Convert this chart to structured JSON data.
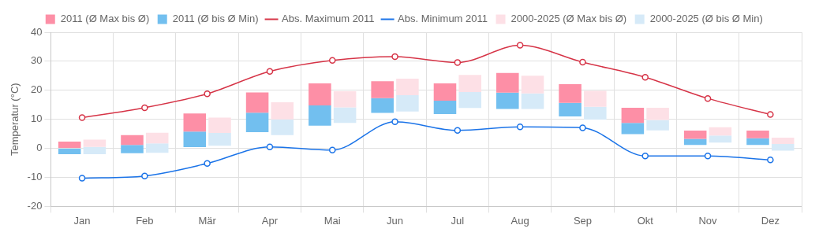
{
  "chart_data": {
    "type": "bar",
    "ylabel": "Temperatur (°C)",
    "categories": [
      "Jan",
      "Feb",
      "Mär",
      "Apr",
      "Mai",
      "Jun",
      "Jul",
      "Aug",
      "Sep",
      "Okt",
      "Nov",
      "Dez"
    ],
    "series": [
      {
        "name": "2011 (Ø Max bis Ø)",
        "color": "#fd8fa6",
        "base": [
          0,
          1.2,
          5.8,
          12.3,
          14.8,
          17.3,
          16.4,
          19.2,
          15.7,
          8.8,
          3.3,
          3.5
        ],
        "values": [
          2.3,
          3.4,
          6.2,
          7.0,
          7.6,
          5.8,
          6.0,
          6.8,
          6.4,
          5.2,
          2.8,
          2.6
        ]
      },
      {
        "name": "2011 (Ø bis Ø Min)",
        "color": "#72bfef",
        "base": [
          -2,
          -1.7,
          0.4,
          5.6,
          7.8,
          12.2,
          11.8,
          13.6,
          11,
          4.9,
          1.2,
          1.2
        ],
        "values": [
          2,
          2.9,
          5.4,
          6.7,
          7.0,
          5.1,
          4.6,
          5.6,
          4.7,
          3.9,
          2.1,
          2.3
        ]
      },
      {
        "name": "Abs. Maximum 2011",
        "type": "line",
        "color": "#d63447",
        "values": [
          10.6,
          14,
          18.8,
          26.5,
          30.3,
          31.6,
          29.6,
          35.5,
          29.7,
          24.5,
          17.2,
          11.7
        ]
      },
      {
        "name": "Abs. Minimum 2011",
        "type": "line",
        "color": "#1a73e8",
        "values": [
          -10.3,
          -9.5,
          -5.2,
          0.5,
          -0.6,
          9.2,
          6.2,
          7.4,
          7.1,
          -2.6,
          -2.6,
          -4.0
        ]
      },
      {
        "name": "2000-2025 (Ø Max bis Ø)",
        "color": "#fde0e6",
        "base": [
          0.5,
          1.7,
          5.3,
          10,
          14.1,
          18.3,
          19.4,
          18.9,
          14.3,
          9.8,
          4.4,
          1.5
        ],
        "values": [
          2.5,
          3.7,
          5.3,
          5.9,
          5.6,
          5.7,
          5.9,
          6.1,
          5.5,
          4.2,
          2.9,
          2.2
        ]
      },
      {
        "name": "2000-2025 (Ø bis Ø Min)",
        "color": "#d6eaf8",
        "base": [
          -2,
          -1.5,
          0.9,
          4.6,
          8.8,
          12.7,
          13.9,
          13.6,
          9.9,
          6.2,
          2,
          -0.8
        ],
        "values": [
          2.5,
          3.2,
          4.4,
          5.4,
          5.3,
          5.6,
          5.5,
          5.3,
          4.4,
          3.6,
          2.4,
          2.3
        ]
      }
    ],
    "ylim": [
      -20,
      40
    ],
    "yticks": [
      -20,
      -10,
      0,
      10,
      20,
      30,
      40
    ],
    "grid": true,
    "legend": "top",
    "marker": "circle"
  }
}
